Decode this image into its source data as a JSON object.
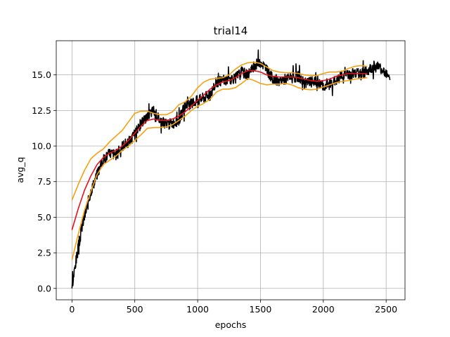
{
  "chart_data": {
    "type": "line",
    "title": "trial14",
    "xlabel": "epochs",
    "ylabel": "avg_q",
    "xlim": [
      -125,
      2650
    ],
    "ylim": [
      -0.8,
      17.4
    ],
    "xticks": [
      0,
      500,
      1000,
      1500,
      2000,
      2500
    ],
    "xtick_labels": [
      "0",
      "500",
      "1000",
      "1500",
      "2000",
      "2500"
    ],
    "yticks": [
      0.0,
      2.5,
      5.0,
      7.5,
      10.0,
      12.5,
      15.0
    ],
    "ytick_labels": [
      "0.0",
      "2.5",
      "5.0",
      "7.5",
      "10.0",
      "12.5",
      "15.0"
    ],
    "grid": true,
    "colors": {
      "raw": "#000000",
      "mean": "#e8111c",
      "band": "#f5a10f"
    },
    "series": [
      {
        "role": "raw",
        "x": [
          0,
          25,
          50,
          75,
          100,
          150,
          200,
          250,
          300,
          350,
          400,
          450,
          500,
          550,
          600,
          650,
          700,
          750,
          800,
          850,
          900,
          950,
          1000,
          1050,
          1100,
          1150,
          1200,
          1250,
          1300,
          1350,
          1400,
          1450,
          1500,
          1550,
          1600,
          1650,
          1700,
          1750,
          1800,
          1850,
          1900,
          1950,
          2000,
          2050,
          2100,
          2150,
          2200,
          2250,
          2300,
          2350,
          2400,
          2450,
          2500,
          2530
        ],
        "y": [
          0.0,
          1.5,
          2.8,
          4.2,
          5.0,
          6.8,
          8.0,
          9.0,
          9.5,
          9.4,
          10.0,
          10.3,
          10.8,
          11.6,
          12.1,
          12.5,
          11.8,
          11.5,
          11.6,
          11.8,
          12.8,
          13.0,
          13.2,
          13.4,
          13.6,
          14.5,
          14.6,
          14.7,
          14.8,
          15.2,
          15.0,
          15.6,
          16.0,
          15.3,
          14.7,
          14.6,
          14.7,
          14.8,
          14.9,
          14.4,
          14.5,
          14.5,
          14.2,
          14.4,
          14.6,
          15.0,
          15.0,
          15.2,
          15.0,
          15.3,
          15.6,
          15.5,
          15.2,
          15.0
        ]
      },
      {
        "role": "mean",
        "x": [
          0,
          50,
          100,
          150,
          200,
          250,
          300,
          350,
          400,
          450,
          500,
          550,
          600,
          650,
          700,
          750,
          800,
          850,
          900,
          950,
          1000,
          1050,
          1100,
          1150,
          1200,
          1250,
          1300,
          1350,
          1400,
          1450,
          1500,
          1550,
          1600,
          1650,
          1700,
          1750,
          1800,
          1850,
          1900,
          1950,
          2000,
          2050,
          2100,
          2150,
          2200,
          2250,
          2300,
          2350
        ],
        "y": [
          4.1,
          5.6,
          6.9,
          7.9,
          8.7,
          9.2,
          9.5,
          9.7,
          10.0,
          10.4,
          10.9,
          11.4,
          11.8,
          11.9,
          11.8,
          11.8,
          11.9,
          12.1,
          12.4,
          12.8,
          13.2,
          13.6,
          14.0,
          14.3,
          14.5,
          14.6,
          14.8,
          15.1,
          15.3,
          15.3,
          15.2,
          15.0,
          14.9,
          14.85,
          14.85,
          14.85,
          14.8,
          14.7,
          14.6,
          14.55,
          14.6,
          14.7,
          14.9,
          15.0,
          15.1,
          15.1,
          15.1,
          15.1
        ]
      },
      {
        "role": "upper",
        "x": [
          0,
          50,
          100,
          150,
          200,
          250,
          300,
          350,
          400,
          450,
          500,
          550,
          600,
          650,
          700,
          750,
          800,
          850,
          900,
          950,
          1000,
          1050,
          1100,
          1150,
          1200,
          1250,
          1300,
          1350,
          1400,
          1450,
          1500,
          1550,
          1600,
          1650,
          1700,
          1750,
          1800,
          1850,
          1900,
          1950,
          2000,
          2050,
          2100,
          2150,
          2200,
          2250,
          2300,
          2350
        ],
        "y": [
          6.2,
          7.3,
          8.3,
          9.1,
          9.5,
          9.8,
          10.3,
          10.7,
          11.1,
          11.7,
          12.3,
          12.45,
          12.45,
          12.3,
          12.2,
          12.2,
          12.4,
          12.9,
          13.1,
          13.5,
          14.1,
          14.5,
          14.7,
          14.75,
          14.8,
          15.0,
          15.4,
          15.7,
          15.85,
          15.9,
          15.8,
          15.55,
          15.3,
          15.2,
          15.15,
          15.15,
          15.1,
          15.0,
          14.95,
          14.95,
          15.1,
          15.2,
          15.2,
          15.25,
          15.45,
          15.6,
          15.65,
          15.6
        ]
      },
      {
        "role": "lower",
        "x": [
          0,
          50,
          100,
          150,
          200,
          250,
          300,
          350,
          400,
          450,
          500,
          550,
          600,
          650,
          700,
          750,
          800,
          850,
          900,
          950,
          1000,
          1050,
          1100,
          1150,
          1200,
          1250,
          1300,
          1350,
          1400,
          1450,
          1500,
          1550,
          1600,
          1650,
          1700,
          1750,
          1800,
          1850,
          1900,
          1950,
          2000,
          2050,
          2100,
          2150,
          2200,
          2250,
          2300,
          2350
        ],
        "y": [
          2.0,
          3.8,
          5.5,
          6.8,
          8.0,
          8.7,
          9.0,
          9.3,
          9.7,
          10.0,
          10.4,
          10.8,
          11.25,
          11.3,
          11.3,
          11.35,
          11.5,
          11.8,
          12.1,
          12.5,
          12.8,
          13.0,
          13.3,
          13.8,
          14.0,
          14.0,
          14.1,
          14.4,
          14.75,
          14.6,
          14.4,
          14.3,
          14.35,
          14.35,
          14.4,
          14.3,
          14.1,
          14.0,
          13.95,
          14.0,
          14.15,
          14.3,
          14.45,
          14.55,
          14.6,
          14.7,
          14.75,
          14.8
        ]
      }
    ]
  }
}
